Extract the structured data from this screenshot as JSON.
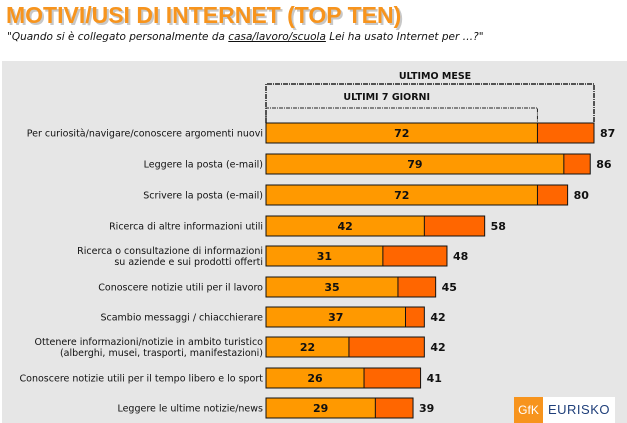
{
  "title": "MOTIVI/USI DI INTERNET (TOP TEN)",
  "subtitle": {
    "before": "\"Quando si è collegato personalmente da ",
    "underlined": "casa/lavoro/scuola",
    "after": " Lei ha usato Internet per …?\""
  },
  "logo": {
    "gfk": "GfK",
    "eurisko": "EURISKO"
  },
  "chart_data": {
    "type": "bar",
    "orientation": "horizontal",
    "stacked_overlay": true,
    "colors": {
      "ultimi_7_giorni": "#FF9900",
      "ultimo_mese": "#FF6600",
      "background": "#E6E6E6"
    },
    "brackets": {
      "outer": "ULTIMO MESE",
      "inner": "ULTIMI 7 GIORNI"
    },
    "categories": [
      [
        "Per curiosità/navigare/conoscere argomenti nuovi"
      ],
      [
        "Leggere la posta (e-mail)"
      ],
      [
        "Scrivere la posta (e-mail)"
      ],
      [
        "Ricerca di altre informazioni utili"
      ],
      [
        "Ricerca o consultazione di informazioni",
        "su aziende e sui prodotti offerti"
      ],
      [
        "Conoscere notizie utili per il lavoro"
      ],
      [
        "Scambio messaggi  / chiacchierare"
      ],
      [
        "Ottenere informazioni/notizie in ambito turistico",
        "(alberghi, musei, trasporti, manifestazioni)"
      ],
      [
        "Conoscere notizie utili per il tempo libero e lo sport"
      ],
      [
        "Leggere le ultime notizie/news"
      ]
    ],
    "series": [
      {
        "name": "ULTIMI 7 GIORNI",
        "values": [
          72,
          79,
          72,
          42,
          31,
          35,
          37,
          22,
          26,
          29
        ]
      },
      {
        "name": "ULTIMO MESE",
        "values": [
          87,
          86,
          80,
          58,
          48,
          45,
          42,
          42,
          41,
          39
        ]
      }
    ],
    "xlim": [
      0,
      87
    ]
  }
}
